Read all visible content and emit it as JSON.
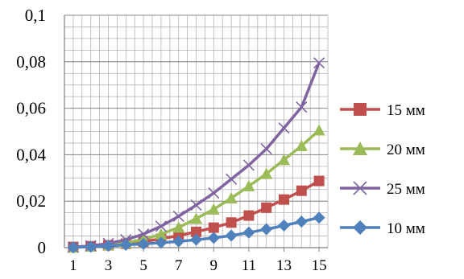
{
  "chart_data": {
    "type": "line",
    "title": "",
    "xlabel": "",
    "ylabel": "",
    "x": [
      1,
      2,
      3,
      4,
      5,
      6,
      7,
      8,
      9,
      10,
      11,
      12,
      13,
      14,
      15
    ],
    "x_tick_labels": [
      "1",
      "3",
      "5",
      "7",
      "9",
      "11",
      "13",
      "15"
    ],
    "y_tick_labels": [
      "0",
      "0,02",
      "0,04",
      "0,06",
      "0,08",
      "0,1"
    ],
    "ylim": [
      0,
      0.1
    ],
    "y_major_step": 0.02,
    "y_minor_step": 0.005,
    "grid": true,
    "legend_position": "right",
    "series": [
      {
        "name": "15 мм",
        "color": "#c0504d",
        "marker": "square",
        "values": [
          0.0003,
          0.0006,
          0.001,
          0.0017,
          0.0026,
          0.0038,
          0.0052,
          0.0068,
          0.0086,
          0.0108,
          0.0138,
          0.0172,
          0.0207,
          0.0245,
          0.0287
        ]
      },
      {
        "name": "20 мм",
        "color": "#9bbb59",
        "marker": "triangle",
        "values": [
          0.0001,
          0.0005,
          0.0011,
          0.0021,
          0.0035,
          0.0058,
          0.0087,
          0.0125,
          0.0165,
          0.0213,
          0.0265,
          0.0318,
          0.0378,
          0.0438,
          0.0505
        ]
      },
      {
        "name": "25 мм",
        "color": "#8064a2",
        "marker": "x",
        "values": [
          0.0002,
          0.0008,
          0.0018,
          0.0034,
          0.0058,
          0.0092,
          0.0135,
          0.0183,
          0.0235,
          0.0295,
          0.0355,
          0.0425,
          0.0515,
          0.0605,
          0.0795
        ]
      },
      {
        "name": "10 мм",
        "color": "#4f81bd",
        "marker": "diamond",
        "values": [
          0.0001,
          0.0004,
          0.0008,
          0.0012,
          0.0016,
          0.0021,
          0.0027,
          0.0034,
          0.0042,
          0.0052,
          0.0065,
          0.0079,
          0.0095,
          0.0112,
          0.0129
        ]
      }
    ]
  }
}
